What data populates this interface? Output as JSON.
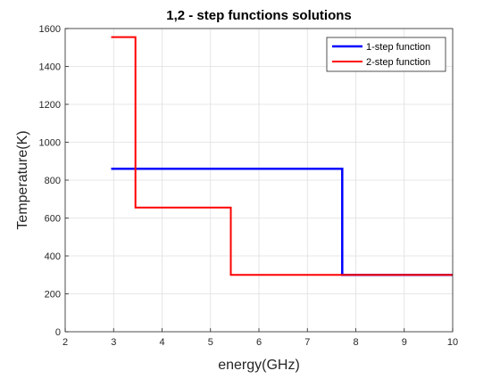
{
  "chart_data": {
    "type": "line",
    "title": "1,2 - step functions solutions",
    "xlabel": "energy(GHz)",
    "ylabel": "Temperature(K)",
    "xlim": [
      2,
      10
    ],
    "ylim": [
      0,
      1600
    ],
    "xticks": [
      2,
      3,
      4,
      5,
      6,
      7,
      8,
      9,
      10
    ],
    "yticks": [
      0,
      200,
      400,
      600,
      800,
      1000,
      1200,
      1400,
      1600
    ],
    "grid": true,
    "legend_position": "top-right",
    "series": [
      {
        "name": "1-step function",
        "color": "#0000ff",
        "x": [
          2.95,
          7.72,
          7.72,
          10
        ],
        "y": [
          860,
          860,
          300,
          300
        ]
      },
      {
        "name": "2-step function",
        "color": "#ff0000",
        "x": [
          2.95,
          3.45,
          3.45,
          5.42,
          5.42,
          10
        ],
        "y": [
          1555,
          1555,
          655,
          655,
          300,
          300
        ]
      }
    ]
  }
}
